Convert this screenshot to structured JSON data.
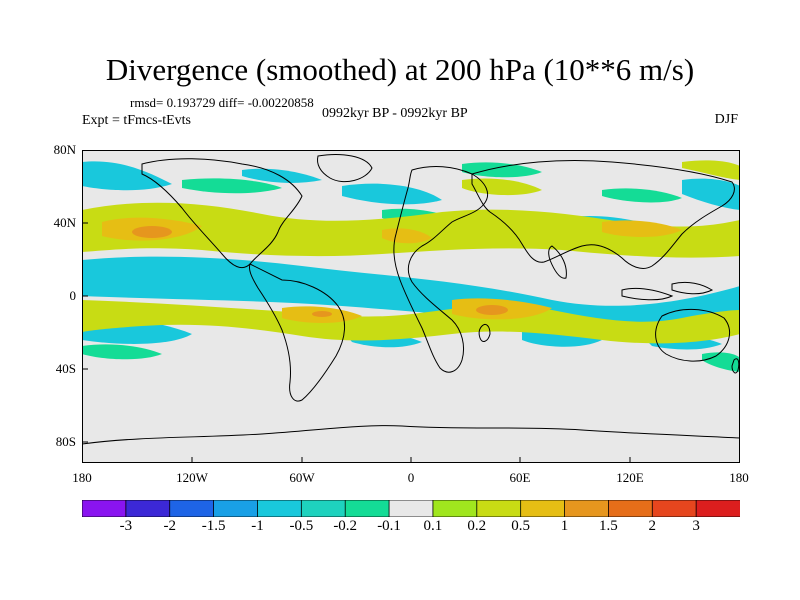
{
  "title": "Divergence (smoothed) at 200 hPa (10**6 m/s)",
  "stats_line": "rmsd= 0.193729 diff= -0.00220858",
  "experiment": "Expt = tFmcs-tEvts",
  "period": "0992kyr BP - 0992kyr BP",
  "season": "DJF",
  "lat_labels": [
    "80N",
    "40N",
    "0",
    "40S",
    "80S"
  ],
  "lon_labels": [
    "180",
    "120W",
    "60W",
    "0",
    "60E",
    "120E",
    "180"
  ],
  "colorbar": {
    "labels": [
      "-3",
      "-2",
      "-1.5",
      "-1",
      "-0.5",
      "-0.2",
      "-0.1",
      "0.1",
      "0.2",
      "0.5",
      "1",
      "1.5",
      "2",
      "3"
    ],
    "colors": [
      "#8a14f0",
      "#3c28d6",
      "#1e64e6",
      "#19a0e6",
      "#19c8dc",
      "#1ed2be",
      "#14dc96",
      "#e8e8e8",
      "#a0e61e",
      "#c8dc14",
      "#e6be14",
      "#e6961e",
      "#e66e19",
      "#e6461e",
      "#dc1e1e"
    ]
  },
  "map": {
    "background": "#e8e8e8",
    "coastline": "#000000"
  }
}
